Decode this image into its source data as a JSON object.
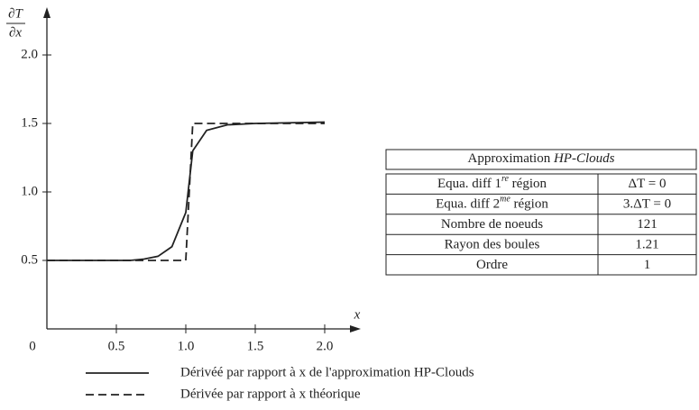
{
  "chart_data": {
    "type": "line",
    "y_label": {
      "numerator": "∂T",
      "denominator": "∂x"
    },
    "x_label": "x",
    "origin_label": "0",
    "xlim": [
      0,
      2.2
    ],
    "ylim": [
      0,
      2.3
    ],
    "xticks": [
      0.5,
      {
        "value": 1,
        "label": "1.0"
      },
      1.5,
      {
        "value": 2,
        "label": "2.0"
      }
    ],
    "yticks": [
      0.5,
      {
        "value": 1,
        "label": "1.0"
      },
      1.5,
      {
        "value": 2,
        "label": "2.0"
      }
    ],
    "series": [
      {
        "name": "Dérivéé par rapport à x de l'approximation HP-Clouds",
        "color": "#222222",
        "dashed": false,
        "x": [
          0,
          0.6,
          0.7,
          0.8,
          0.9,
          1.0,
          1.05,
          1.15,
          1.3,
          1.5,
          2.0
        ],
        "values": [
          0.5,
          0.5,
          0.51,
          0.53,
          0.6,
          0.85,
          1.3,
          1.45,
          1.49,
          1.5,
          1.51
        ]
      },
      {
        "name": "Dérivée par rapport à x théorique",
        "color": "#222222",
        "dashed": true,
        "x": [
          0,
          1.0,
          1.05,
          2.0
        ],
        "values": [
          0.5,
          0.5,
          1.5,
          1.5
        ]
      }
    ]
  },
  "table": {
    "title": {
      "text": "Approximation ",
      "italic": "HP-Clouds"
    },
    "rows": [
      [
        {
          "text": "Equa. diff 1",
          "sup": "re",
          "tail": " région"
        },
        {
          "text": "ΔT = 0"
        }
      ],
      [
        {
          "text": "Equa. diff 2",
          "sup": "me",
          "tail": " région"
        },
        {
          "text": "3.ΔT = 0"
        }
      ],
      [
        {
          "text": "Nombre de noeuds"
        },
        {
          "text": "121"
        }
      ],
      [
        {
          "text": "Rayon des boules"
        },
        {
          "text": "1.21"
        }
      ],
      [
        {
          "text": "Ordre"
        },
        {
          "text": "1"
        }
      ]
    ]
  }
}
